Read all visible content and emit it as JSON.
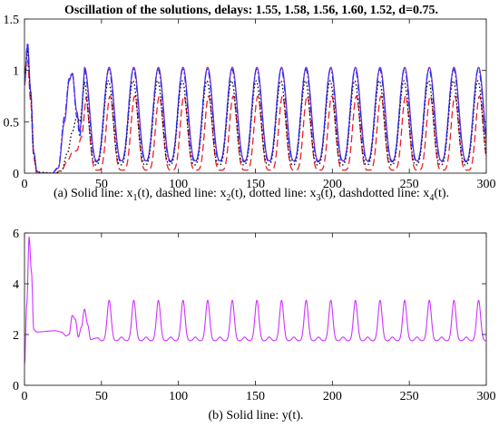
{
  "title": "Oscillation of the solutions, delays: 1.55, 1.58, 1.56, 1.60, 1.52, d=0.75.",
  "captions": {
    "a": {
      "p1": "(a) Solid line: x",
      "s1": "1",
      "p2": "(t), dashed line: x",
      "s2": "2",
      "p3": "(t), dotted line: x",
      "s3": "3",
      "p4": "(t), dashdotted line: x",
      "s4": "4",
      "p5": "(t)."
    },
    "b": "(b) Solid line: y(t)."
  },
  "colors": {
    "x1": "#7b2fbf",
    "x2": "#e8202a",
    "x3": "#000000",
    "x4": "#1f2fff",
    "y": "#cc33ff",
    "axis": "#262626"
  },
  "chart_data": [
    {
      "type": "line",
      "title": "Oscillation of the solutions, delays: 1.55, 1.58, 1.56, 1.60, 1.52, d=0.75.",
      "xlabel": "",
      "ylabel": "",
      "xlim": [
        0,
        300
      ],
      "ylim": [
        0,
        1.5
      ],
      "xticks": [
        0,
        50,
        100,
        150,
        200,
        250,
        300
      ],
      "yticks": [
        0,
        0.5,
        1,
        1.5
      ],
      "ytick_labels": [
        "0",
        "0.5",
        "1",
        "1.5"
      ],
      "grid": false,
      "period": 16,
      "first_peak_x": 39,
      "series": [
        {
          "key": "x1",
          "line": "solid",
          "peak": 1.03,
          "trough": 0.12,
          "shape": 1.3,
          "phase": 0.0,
          "initial": [
            [
              0,
              0.85
            ],
            [
              2,
              1.25
            ],
            [
              4,
              0.8
            ],
            [
              6,
              0.2
            ],
            [
              8,
              0.02
            ],
            [
              10,
              0.0
            ],
            [
              18,
              0.0
            ],
            [
              22,
              0.05
            ],
            [
              26,
              0.5
            ],
            [
              29,
              0.9
            ],
            [
              31,
              0.97
            ],
            [
              34,
              0.6
            ],
            [
              36,
              0.4
            ]
          ]
        },
        {
          "key": "x2",
          "line": "dashed",
          "peak": 0.75,
          "trough": 0.03,
          "shape": 2.2,
          "phase": 0.6,
          "initial": [
            [
              0,
              1.0
            ],
            [
              2,
              1.1
            ],
            [
              4,
              0.7
            ],
            [
              6,
              0.15
            ],
            [
              8,
              0.0
            ],
            [
              20,
              0.0
            ],
            [
              24,
              0.03
            ],
            [
              28,
              0.12
            ],
            [
              31,
              0.2
            ],
            [
              34,
              0.22
            ],
            [
              37,
              0.35
            ]
          ]
        },
        {
          "key": "x3",
          "line": "dotted",
          "peak": 0.9,
          "trough": 0.08,
          "shape": 1.5,
          "phase": -0.5,
          "initial": [
            [
              0,
              0.9
            ],
            [
              2,
              1.2
            ],
            [
              4,
              0.75
            ],
            [
              6,
              0.2
            ],
            [
              8,
              0.01
            ],
            [
              20,
              0.0
            ],
            [
              24,
              0.02
            ],
            [
              28,
              0.2
            ],
            [
              31,
              0.4
            ],
            [
              34,
              0.55
            ],
            [
              36,
              0.5
            ]
          ]
        },
        {
          "key": "x4",
          "line": "dashdot",
          "peak": 1.01,
          "trough": 0.11,
          "shape": 1.3,
          "phase": -0.2,
          "initial": [
            [
              0,
              0.9
            ],
            [
              2,
              1.27
            ],
            [
              4,
              0.8
            ],
            [
              6,
              0.2
            ],
            [
              8,
              0.02
            ],
            [
              10,
              0.0
            ],
            [
              18,
              0.0
            ],
            [
              22,
              0.06
            ],
            [
              26,
              0.55
            ],
            [
              29,
              0.92
            ],
            [
              31,
              0.98
            ],
            [
              34,
              0.55
            ],
            [
              36,
              0.35
            ]
          ]
        }
      ]
    },
    {
      "type": "line",
      "title": "",
      "xlabel": "",
      "ylabel": "",
      "xlim": [
        0,
        300
      ],
      "ylim": [
        0,
        6
      ],
      "xticks": [
        0,
        50,
        100,
        150,
        200,
        250,
        300
      ],
      "yticks": [
        0,
        2,
        4,
        6
      ],
      "ytick_labels": [
        "0",
        "2",
        "4",
        "6"
      ],
      "grid": false,
      "period": 16,
      "first_peak_x": 55,
      "series": [
        {
          "key": "y",
          "line": "solid",
          "peak": 3.35,
          "base": 1.75,
          "secondary": 1.9,
          "initial": [
            [
              0,
              0.8
            ],
            [
              1.5,
              3.2
            ],
            [
              3,
              5.85
            ],
            [
              4.5,
              4.5
            ],
            [
              6,
              2.2
            ],
            [
              8,
              2.1
            ],
            [
              20,
              2.15
            ],
            [
              24,
              2.1
            ],
            [
              27,
              1.95
            ],
            [
              29,
              2.0
            ],
            [
              31,
              2.75
            ],
            [
              33,
              2.6
            ],
            [
              35,
              1.9
            ],
            [
              37,
              2.3
            ],
            [
              39,
              3.0
            ],
            [
              41,
              2.4
            ],
            [
              43,
              1.8
            ],
            [
              46,
              1.85
            ]
          ]
        }
      ]
    }
  ]
}
